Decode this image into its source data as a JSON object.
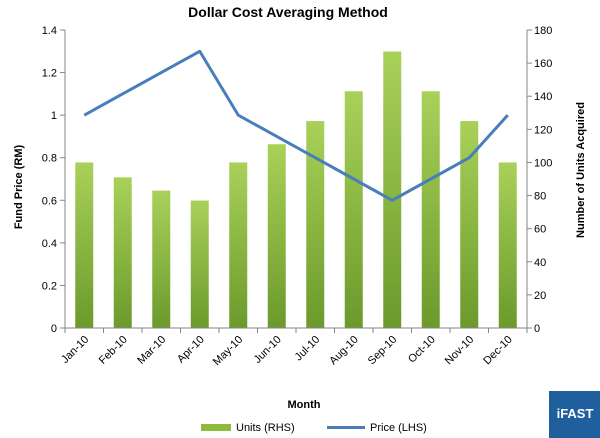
{
  "chart_data": {
    "type": "bar+line",
    "title": "Dollar Cost Averaging Method",
    "xlabel": "Month",
    "ylabel_left": "Fund Price (RM)",
    "ylabel_right": "Number of Units Acquired",
    "categories": [
      "Jan-10",
      "Feb-10",
      "Mar-10",
      "Apr-10",
      "May-10",
      "Jun-10",
      "Jul-10",
      "Aug-10",
      "Sep-10",
      "Oct-10",
      "Nov-10",
      "Dec-10"
    ],
    "series": [
      {
        "name": "Units (RHS)",
        "type": "bar",
        "axis": "right",
        "color": "#8dbb3c",
        "values": [
          100,
          91,
          83,
          77,
          100,
          111,
          125,
          143,
          167,
          143,
          125,
          100
        ]
      },
      {
        "name": "Price (LHS)",
        "type": "line",
        "axis": "left",
        "color": "#4a7ebb",
        "values": [
          1.0,
          1.1,
          1.2,
          1.3,
          1.0,
          0.9,
          0.8,
          0.7,
          0.6,
          0.7,
          0.8,
          1.0
        ]
      }
    ],
    "ylim_left": [
      0,
      1.4
    ],
    "ylim_right": [
      0,
      180
    ],
    "yticks_left": [
      "0",
      "0.2",
      "0.4",
      "0.6",
      "0.8",
      "1",
      "1.2",
      "1.4"
    ],
    "yticks_right": [
      "0",
      "20",
      "40",
      "60",
      "80",
      "100",
      "120",
      "140",
      "160",
      "180"
    ],
    "legend_position": "bottom",
    "grid": false
  },
  "logo": {
    "text": "iFAST",
    "color": "#1f5f9e"
  }
}
